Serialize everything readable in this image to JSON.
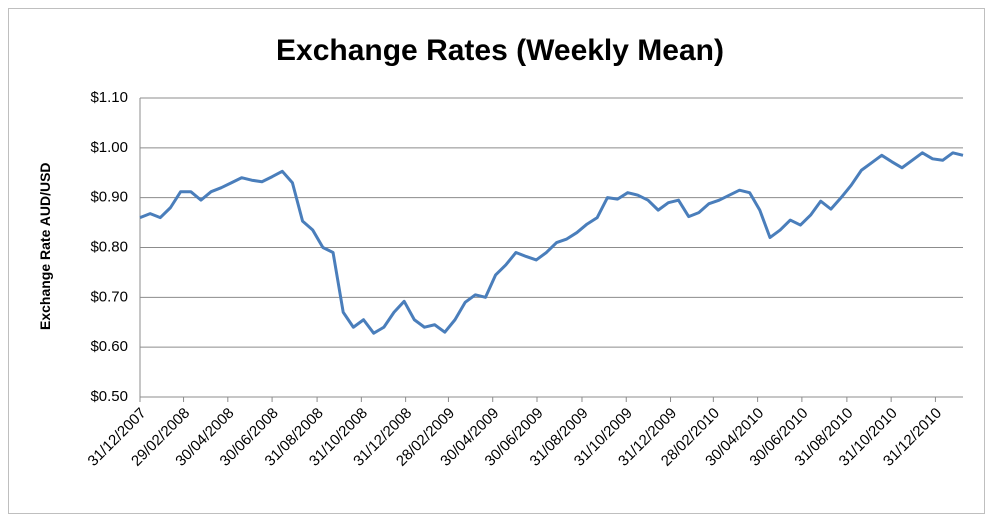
{
  "chart_data": {
    "type": "line",
    "title": "Exchange Rates (Weekly Mean)",
    "y_label": "Exchange Rate AUD/USD",
    "x": [
      "31/12/2007",
      "14/01/2008",
      "28/01/2008",
      "11/02/2008",
      "25/02/2008",
      "10/03/2008",
      "24/03/2008",
      "07/04/2008",
      "21/04/2008",
      "05/05/2008",
      "19/05/2008",
      "02/06/2008",
      "16/06/2008",
      "30/06/2008",
      "14/07/2008",
      "28/07/2008",
      "11/08/2008",
      "25/08/2008",
      "08/09/2008",
      "22/09/2008",
      "06/10/2008",
      "20/10/2008",
      "03/11/2008",
      "17/11/2008",
      "01/12/2008",
      "15/12/2008",
      "29/12/2008",
      "12/01/2009",
      "26/01/2009",
      "09/02/2009",
      "23/02/2009",
      "09/03/2009",
      "23/03/2009",
      "06/04/2009",
      "20/04/2009",
      "04/05/2009",
      "18/05/2009",
      "01/06/2009",
      "15/06/2009",
      "29/06/2009",
      "13/07/2009",
      "27/07/2009",
      "10/08/2009",
      "24/08/2009",
      "07/09/2009",
      "21/09/2009",
      "05/10/2009",
      "19/10/2009",
      "02/11/2009",
      "16/11/2009",
      "30/11/2009",
      "14/12/2009",
      "28/12/2009",
      "11/01/2010",
      "25/01/2010",
      "08/02/2010",
      "22/02/2010",
      "08/03/2010",
      "22/03/2010",
      "05/04/2010",
      "19/04/2010",
      "03/05/2010",
      "17/05/2010",
      "31/05/2010",
      "14/06/2010",
      "28/06/2010",
      "12/07/2010",
      "26/07/2010",
      "09/08/2010",
      "23/08/2010",
      "06/09/2010",
      "20/09/2010",
      "04/10/2010",
      "18/10/2010",
      "01/11/2010",
      "15/11/2010",
      "29/11/2010",
      "13/12/2010",
      "27/12/2010",
      "10/01/2011",
      "24/01/2011",
      "07/02/2011"
    ],
    "series": [
      {
        "name": "Exchange Rate AUD/USD",
        "color": "#4a7ebb",
        "values": [
          0.86,
          0.868,
          0.86,
          0.88,
          0.912,
          0.912,
          0.895,
          0.912,
          0.92,
          0.93,
          0.94,
          0.935,
          0.932,
          0.942,
          0.953,
          0.93,
          0.853,
          0.835,
          0.8,
          0.79,
          0.67,
          0.64,
          0.655,
          0.628,
          0.64,
          0.67,
          0.692,
          0.655,
          0.64,
          0.645,
          0.63,
          0.655,
          0.69,
          0.705,
          0.7,
          0.745,
          0.765,
          0.79,
          0.782,
          0.775,
          0.79,
          0.81,
          0.817,
          0.83,
          0.847,
          0.86,
          0.9,
          0.897,
          0.91,
          0.905,
          0.895,
          0.875,
          0.89,
          0.895,
          0.862,
          0.87,
          0.888,
          0.895,
          0.905,
          0.915,
          0.91,
          0.875,
          0.82,
          0.835,
          0.855,
          0.845,
          0.865,
          0.893,
          0.877,
          0.9,
          0.925,
          0.955,
          0.97,
          0.985,
          0.972,
          0.96,
          0.975,
          0.99,
          0.978,
          0.975,
          0.99,
          0.985
        ]
      }
    ],
    "xlim": [
      "31/12/2007",
      "07/02/2011"
    ],
    "xticks": [
      "31/12/2007",
      "29/02/2008",
      "30/04/2008",
      "30/06/2008",
      "31/08/2008",
      "31/10/2008",
      "31/12/2008",
      "28/02/2009",
      "30/04/2009",
      "30/06/2009",
      "31/08/2009",
      "31/10/2009",
      "31/12/2009",
      "28/02/2010",
      "30/04/2010",
      "30/06/2010",
      "31/08/2010",
      "31/10/2010",
      "31/12/2010"
    ],
    "ylim": [
      0.5,
      1.1
    ],
    "yticks": [
      {
        "value": 0.5,
        "label": "$0.50"
      },
      {
        "value": 0.6,
        "label": "$0.60"
      },
      {
        "value": 0.7,
        "label": "$0.70"
      },
      {
        "value": 0.8,
        "label": "$0.80"
      },
      {
        "value": 0.9,
        "label": "$0.90"
      },
      {
        "value": 1.0,
        "label": "$1.00"
      },
      {
        "value": 1.1,
        "label": "$1.10"
      }
    ],
    "grid": true
  }
}
